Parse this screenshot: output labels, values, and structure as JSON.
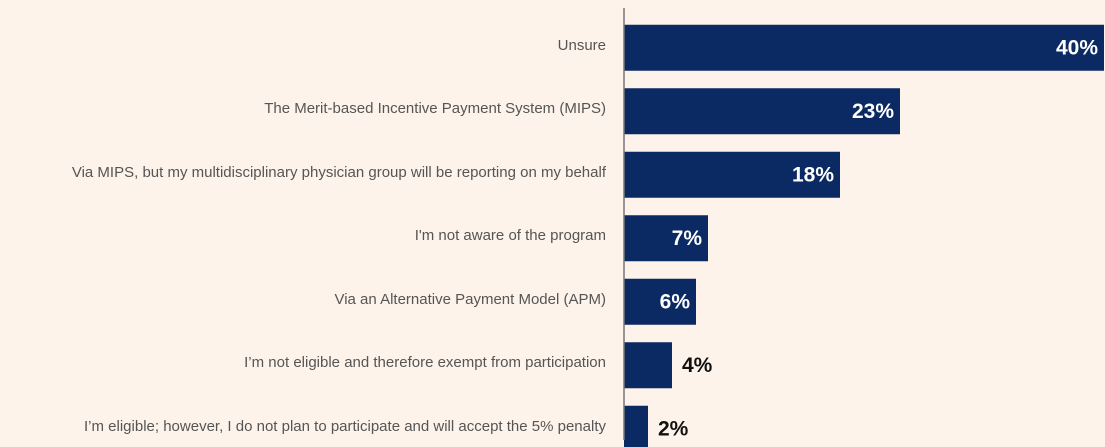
{
  "chart_data": {
    "type": "barh",
    "categories": [
      "Unsure",
      "The Merit-based Incentive Payment System (MIPS)",
      "Via MIPS, but my multidisciplinary physician group will be reporting on my behalf",
      "I'm not aware of the program",
      "Via an Alternative Payment Model (APM)",
      "I’m not eligible and therefore exempt from participation",
      "I’m eligible; however, I do not plan to participate and will accept the 5% penalty"
    ],
    "values": [
      40,
      23,
      18,
      7,
      6,
      4,
      2
    ],
    "value_labels": [
      "40%",
      "23%",
      "18%",
      "7%",
      "6%",
      "4%",
      "2%"
    ],
    "color": "#0b2a63",
    "xlim": [
      0,
      40
    ]
  }
}
